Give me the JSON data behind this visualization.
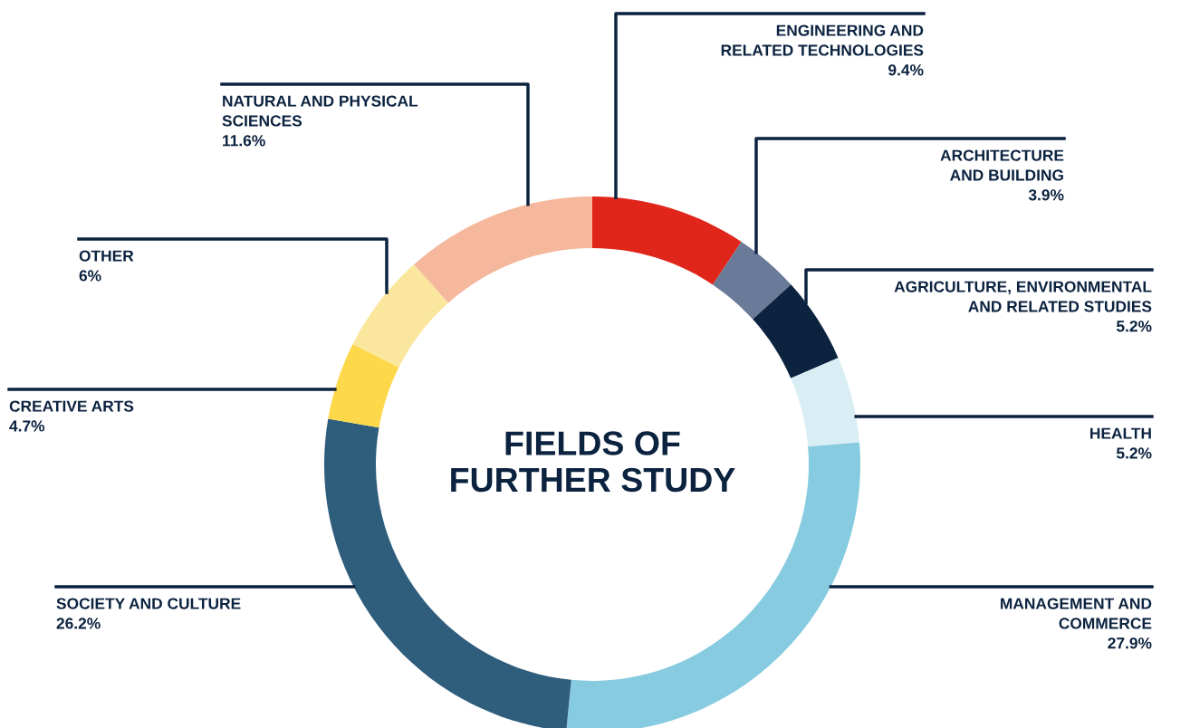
{
  "chart_data": {
    "type": "donut",
    "title": "FIELDS OF\nFURTHER STUDY",
    "categories": [
      "ENGINEERING AND\nRELATED TECHNOLOGIES",
      "ARCHITECTURE\nAND BUILDING",
      "AGRICULTURE, ENVIRONMENTAL\nAND RELATED STUDIES",
      "HEALTH",
      "MANAGEMENT AND\nCOMMERCE",
      "SOCIETY AND CULTURE",
      "CREATIVE ARTS",
      "OTHER",
      "NATURAL AND PHYSICAL\nSCIENCES"
    ],
    "values": [
      9.4,
      3.9,
      5.2,
      5.2,
      27.9,
      26.2,
      4.7,
      6,
      11.6
    ],
    "value_labels": [
      "9.4%",
      "3.9%",
      "5.2%",
      "5.2%",
      "27.9%",
      "26.2%",
      "4.7%",
      "6%",
      "11.6%"
    ],
    "colors": [
      "#e0261a",
      "#6a7b99",
      "#0c2340",
      "#d9edf4",
      "#86cbe0",
      "#2f5d7c",
      "#fdd84a",
      "#fbe69d",
      "#f6b89c"
    ]
  }
}
